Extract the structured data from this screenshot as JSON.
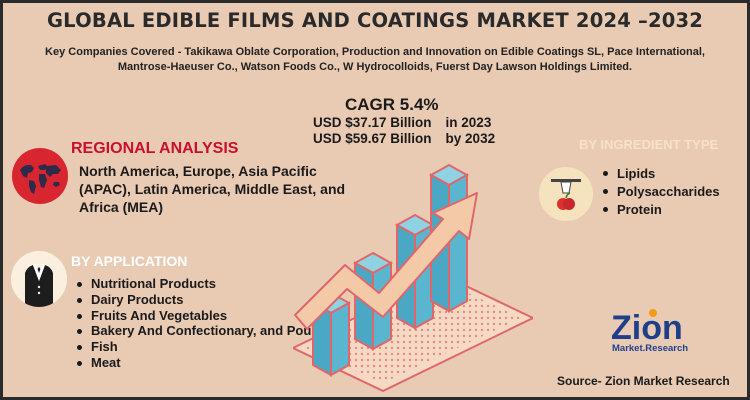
{
  "title": "GLOBAL EDIBLE FILMS AND COATINGS MARKET 2024 –2032",
  "companies": "Key Companies Covered - Takikawa Oblate Corporation, Production and Innovation on Edible Coatings SL, Pace International, Mantrose-Haeuser Co., Watson Foods Co., W Hydrocolloids, Fuerst Day Lawson Holdings Limited.",
  "cagr": "CAGR 5.4%",
  "value_2023": {
    "amount": "USD $37.17 Billion",
    "period": "in 2023"
  },
  "value_2032": {
    "amount": "USD $59.67 Billion",
    "period": "by 2032"
  },
  "regional": {
    "heading": "REGIONAL ANALYSIS",
    "text": "North America, Europe, Asia Pacific (APAC), Latin America, Middle East, and Africa (MEA)"
  },
  "application": {
    "heading": "BY APPLICATION",
    "items": [
      "Nutritional Products",
      "Dairy Products",
      "Fruits And Vegetables",
      "Bakery And Confectionary, and Poultry",
      "Fish",
      "Meat"
    ]
  },
  "ingredient": {
    "heading": "BY INGREDIENT TYPE",
    "items": [
      "Lipids",
      "Polysaccharides",
      "Protein"
    ]
  },
  "logo": {
    "word": "Zion",
    "sub": "Market.Research"
  },
  "source": "Source- Zion Market Research",
  "icons": [
    "world-map-icon",
    "suit-icon",
    "ingredient-icon",
    "growth-chart-illustration",
    "zion-logo"
  ],
  "colors": {
    "background": "#e9cbb4",
    "region_heading": "#c8102e",
    "bar": "#5ab6cf",
    "bar_outline": "#e0666a",
    "arrow": "#f3c9a8",
    "logo_blue": "#1f3f8a",
    "logo_orange": "#f29a1a"
  }
}
